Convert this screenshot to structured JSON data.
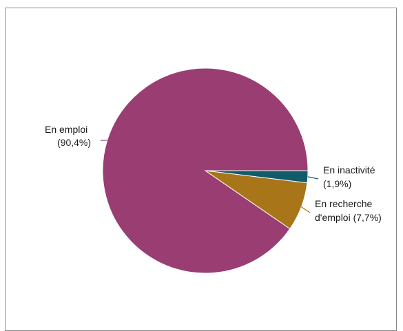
{
  "chart_data": {
    "type": "pie",
    "title": "",
    "slices": [
      {
        "line1": "En emploi",
        "line2": "(90,4%)",
        "value": 90.4,
        "color": "#993d72"
      },
      {
        "line1": "En inactivité",
        "line2": "(1,9%)",
        "value": 1.9,
        "color": "#0f5c6b"
      },
      {
        "line1": "En recherche",
        "line2": "d'emploi (7,7%)",
        "value": 7.7,
        "color": "#a87518"
      }
    ]
  }
}
